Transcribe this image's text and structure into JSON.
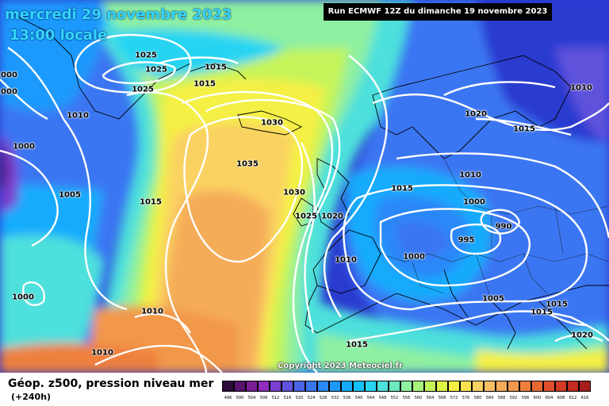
{
  "header": {
    "date": "mercredi 29 novembre 2023",
    "time": "13:00 locale",
    "run": "Run ECMWF 12Z du dimanche 19 novembre 2023"
  },
  "copyright": "Copyright 2023 Meteociel.fr",
  "legend": {
    "title": "Géop. z500, pression niveau mer",
    "subtitle": "(+240h)",
    "colors": [
      "#2c0a3c",
      "#58146e",
      "#7a1f96",
      "#8f2dbd",
      "#7a3fd0",
      "#5f52dc",
      "#4a64e8",
      "#3a76f2",
      "#2a88f8",
      "#1e99fc",
      "#14abfd",
      "#14c0fb",
      "#28d4f2",
      "#4de0dc",
      "#6ee8c0",
      "#8ef0a0",
      "#a8f47a",
      "#c4f45a",
      "#dff248",
      "#f4f044",
      "#fbe252",
      "#fad262",
      "#f8c066",
      "#f5ac58",
      "#f2984a",
      "#ee803e",
      "#e86834",
      "#e0502c",
      "#d43a26",
      "#c22a22",
      "#a81c1c",
      "#8c1414",
      "#6e0c0c",
      "#520606",
      "#3a0303",
      "#000000"
    ],
    "labels": [
      "496",
      "500",
      "504",
      "508",
      "512",
      "516",
      "520",
      "524",
      "528",
      "532",
      "536",
      "540",
      "544",
      "548",
      "552",
      "556",
      "560",
      "564",
      "568",
      "572",
      "576",
      "580",
      "584",
      "588",
      "592",
      "596",
      "600",
      "604",
      "608",
      "612",
      "616"
    ]
  },
  "isobar_labels": [
    {
      "text": "1025"
    },
    {
      "text": "1025"
    },
    {
      "text": "1025"
    },
    {
      "text": "1015"
    },
    {
      "text": "1015"
    },
    {
      "text": "1000"
    },
    {
      "text": "1000"
    },
    {
      "text": "1010"
    },
    {
      "text": "1000"
    },
    {
      "text": "1005"
    },
    {
      "text": "1015"
    },
    {
      "text": "1030"
    },
    {
      "text": "1035"
    },
    {
      "text": "1030"
    },
    {
      "text": "1025"
    },
    {
      "text": "1020"
    },
    {
      "text": "1015"
    },
    {
      "text": "1010"
    },
    {
      "text": "1000"
    },
    {
      "text": "990"
    },
    {
      "text": "995"
    },
    {
      "text": "1000"
    },
    {
      "text": "1010"
    },
    {
      "text": "1020"
    },
    {
      "text": "1015"
    },
    {
      "text": "1010"
    },
    {
      "text": "1005"
    },
    {
      "text": "1015"
    },
    {
      "text": "1015"
    },
    {
      "text": "1020"
    },
    {
      "text": "1000"
    },
    {
      "text": "1010"
    },
    {
      "text": "1010"
    },
    {
      "text": "1015"
    }
  ]
}
